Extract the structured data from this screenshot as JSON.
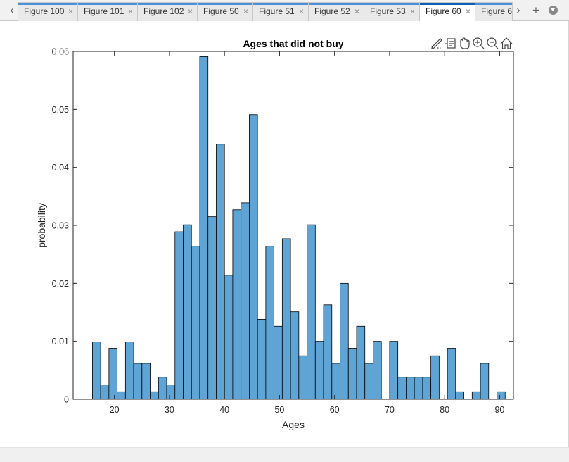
{
  "tabs": [
    {
      "label": "Figure 100",
      "active": false
    },
    {
      "label": "Figure 101",
      "active": false
    },
    {
      "label": "Figure 102",
      "active": false
    },
    {
      "label": "Figure 50",
      "active": false
    },
    {
      "label": "Figure 51",
      "active": false
    },
    {
      "label": "Figure 52",
      "active": false
    },
    {
      "label": "Figure 53",
      "active": false
    },
    {
      "label": "Figure 60",
      "active": true
    },
    {
      "label": "Figure 6",
      "active": false
    }
  ],
  "tab_close_glyph": "×",
  "axes_toolbar_icons": [
    "brush-icon",
    "data-tips-icon",
    "pan-icon",
    "zoom-in-icon",
    "zoom-out-icon",
    "home-icon"
  ],
  "colors": {
    "bar_fill": "#5ea5d6",
    "bar_edge": "#000000",
    "active_tab_accent": "#0a5fb4",
    "tab_accent": "#4a90d9"
  },
  "chart_data": {
    "type": "bar",
    "title": "Ages that did not buy",
    "xlabel": "Ages",
    "ylabel": "probability",
    "xlim": [
      12.5,
      92.5
    ],
    "ylim": [
      0,
      0.06
    ],
    "xticks": [
      20,
      30,
      40,
      50,
      60,
      70,
      80,
      90
    ],
    "yticks": [
      0,
      0.01,
      0.02,
      0.03,
      0.04,
      0.05,
      0.06
    ],
    "ytick_labels": [
      "0",
      "0.01",
      "0.02",
      "0.03",
      "0.04",
      "0.05",
      "0.06"
    ],
    "bin_width": 1.5,
    "bin_start": 16,
    "values": [
      0.0099,
      0.0025,
      0.0088,
      0.0013,
      0.0099,
      0.0062,
      0.0062,
      0.0013,
      0.0038,
      0.0025,
      0.0289,
      0.0301,
      0.0264,
      0.0591,
      0.0315,
      0.044,
      0.0214,
      0.0327,
      0.0339,
      0.0491,
      0.0138,
      0.0264,
      0.0126,
      0.0277,
      0.0151,
      0.0075,
      0.0301,
      0.01,
      0.0163,
      0.0062,
      0.02,
      0.0088,
      0.0126,
      0.0062,
      0.01,
      0,
      0.01,
      0.0038,
      0.0038,
      0.0038,
      0.0038,
      0.0075,
      0,
      0.0088,
      0.0013,
      0,
      0.0013,
      0.0062,
      0,
      0.0013
    ],
    "grid": false,
    "legend": "none"
  }
}
